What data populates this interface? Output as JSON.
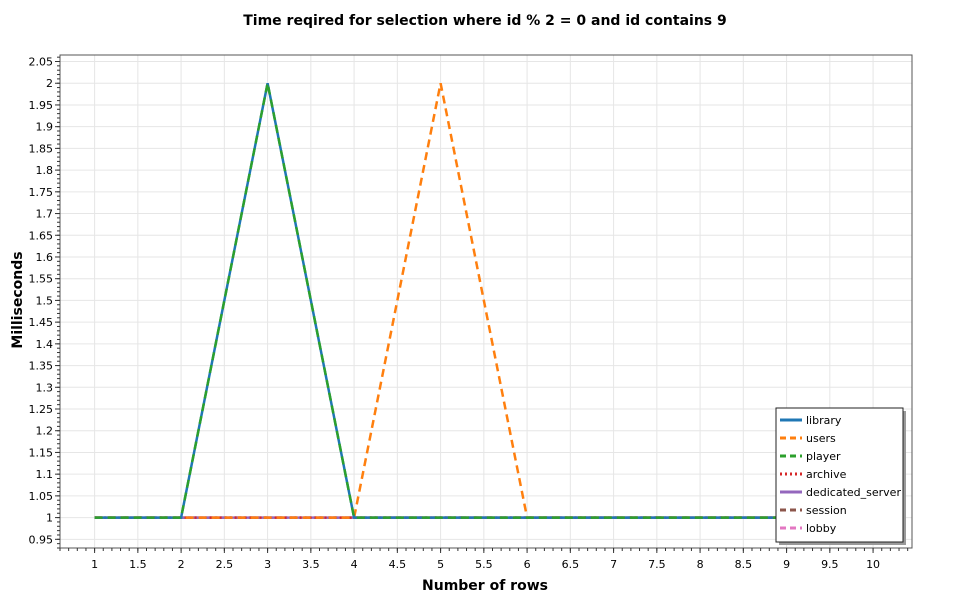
{
  "colors": {
    "library": "#1f77b4",
    "users": "#ff7f0e",
    "player": "#2ca02c",
    "archive": "#d62728",
    "dedicated_server": "#9467bd",
    "session": "#8c564b",
    "lobby": "#e377c2",
    "grid": "#e6e6e6",
    "frame": "#555555"
  },
  "chart_data": {
    "type": "line",
    "title": "Time reqired for selection where id % 2 = 0 and id contains 9",
    "xlabel": "Number of rows",
    "ylabel": "Milliseconds",
    "xlim": [
      0.6,
      10.45
    ],
    "ylim": [
      0.93,
      2.065
    ],
    "x_ticks": [
      "1",
      "1.5",
      "2",
      "2.5",
      "3",
      "3.5",
      "4",
      "4.5",
      "5",
      "5.5",
      "6",
      "6.5",
      "7",
      "7.5",
      "8",
      "8.5",
      "9",
      "9.5",
      "10"
    ],
    "y_ticks": [
      "0.95",
      "1",
      "1.05",
      "1.1",
      "1.15",
      "1.2",
      "1.25",
      "1.3",
      "1.35",
      "1.4",
      "1.45",
      "1.5",
      "1.55",
      "1.6",
      "1.65",
      "1.7",
      "1.75",
      "1.8",
      "1.85",
      "1.9",
      "1.95",
      "2",
      "2.05"
    ],
    "grid": true,
    "legend_position": "bottom-right",
    "x": [
      1,
      2,
      3,
      4,
      5,
      6,
      7,
      8,
      9
    ],
    "series": [
      {
        "name": "library",
        "values": [
          1,
          1,
          2,
          1,
          1,
          1,
          1,
          1,
          1
        ],
        "dash": "solid"
      },
      {
        "name": "users",
        "values": [
          1,
          1,
          1,
          1,
          2,
          1,
          1,
          1,
          1
        ],
        "dash": "dashed"
      },
      {
        "name": "player",
        "values": [
          1,
          1,
          2,
          1,
          1,
          1,
          1,
          1,
          1
        ],
        "dash": "dashed"
      },
      {
        "name": "archive",
        "values": [
          1,
          1,
          1,
          1,
          1,
          1,
          1,
          1,
          1
        ],
        "dash": "dotted"
      },
      {
        "name": "dedicated_server",
        "values": [
          1,
          1,
          1,
          1,
          1,
          1,
          1,
          1,
          1
        ],
        "dash": "solid"
      },
      {
        "name": "session",
        "values": [
          1,
          1,
          1,
          1,
          1,
          1,
          1,
          1,
          1
        ],
        "dash": "dashdot"
      },
      {
        "name": "lobby",
        "values": [
          1,
          1,
          1,
          1,
          1,
          1,
          1,
          1,
          1
        ],
        "dash": "dashed"
      }
    ]
  }
}
